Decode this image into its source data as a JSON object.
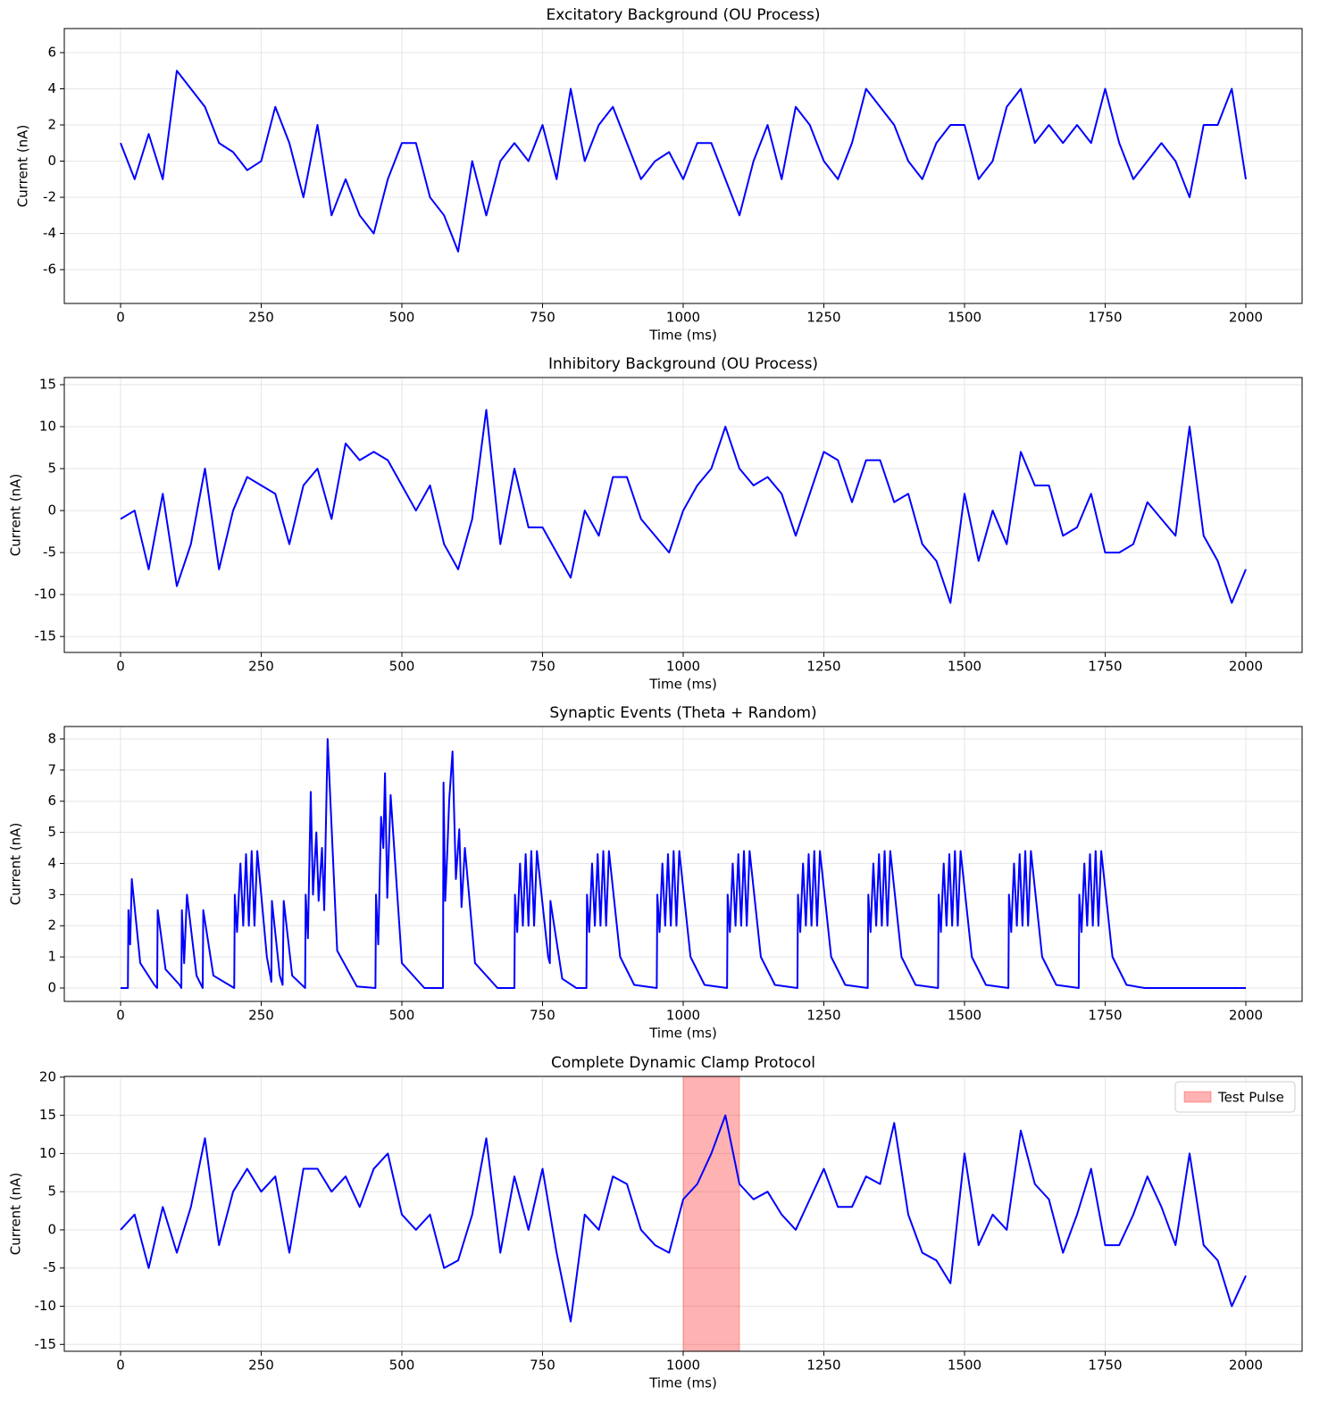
{
  "chart_data": [
    {
      "type": "line",
      "title": "Excitatory Background (OU Process)",
      "xlabel": "Time (ms)",
      "ylabel": "Current (nA)",
      "color": "#0000ff",
      "grid": true,
      "xlim": [
        -100,
        2100
      ],
      "ylim": [
        -7.87,
        7.33
      ],
      "xticks": [
        0,
        250,
        500,
        750,
        1000,
        1250,
        1500,
        1750,
        2000
      ],
      "yticks": [
        -6,
        -4,
        -2,
        0,
        2,
        4,
        6
      ],
      "x": [
        0,
        25,
        50,
        75,
        100,
        125,
        150,
        175,
        200,
        225,
        250,
        275,
        300,
        325,
        350,
        375,
        400,
        425,
        450,
        475,
        500,
        525,
        550,
        575,
        600,
        625,
        650,
        675,
        700,
        725,
        750,
        775,
        800,
        825,
        850,
        875,
        900,
        925,
        950,
        975,
        1000,
        1025,
        1050,
        1075,
        1100,
        1125,
        1150,
        1175,
        1200,
        1225,
        1250,
        1275,
        1300,
        1325,
        1350,
        1375,
        1400,
        1425,
        1450,
        1475,
        1500,
        1525,
        1550,
        1575,
        1600,
        1625,
        1650,
        1675,
        1700,
        1725,
        1750,
        1775,
        1800,
        1825,
        1850,
        1875,
        1900,
        1925,
        1950,
        1975,
        2000
      ],
      "values": [
        1,
        -1,
        1.5,
        -1,
        5,
        4,
        3,
        1,
        0.5,
        -0.5,
        0,
        3,
        1,
        -2,
        2,
        -3,
        -1,
        -3,
        -4,
        -1,
        1,
        1,
        -2,
        -3,
        -5,
        0,
        -3,
        0,
        1,
        0,
        2,
        -1,
        4,
        0,
        2,
        3,
        1,
        -1,
        0,
        0.5,
        -1,
        1,
        1,
        -1,
        -3,
        0,
        2,
        -1,
        3,
        2,
        0,
        -1,
        1,
        4,
        3,
        2,
        0,
        -1,
        1,
        2,
        2,
        -1,
        0,
        3,
        4,
        1,
        2,
        1,
        2,
        1,
        4,
        1,
        -1,
        0,
        1,
        0,
        -2,
        2,
        2,
        4,
        -1
      ]
    },
    {
      "type": "line",
      "title": "Inhibitory Background (OU Process)",
      "xlabel": "Time (ms)",
      "ylabel": "Current (nA)",
      "color": "#0000ff",
      "grid": true,
      "xlim": [
        -100,
        2100
      ],
      "ylim": [
        -16.9,
        15.85
      ],
      "xticks": [
        0,
        250,
        500,
        750,
        1000,
        1250,
        1500,
        1750,
        2000
      ],
      "yticks": [
        -15,
        -10,
        -5,
        0,
        5,
        10,
        15
      ],
      "x": [
        0,
        25,
        50,
        75,
        100,
        125,
        150,
        175,
        200,
        225,
        250,
        275,
        300,
        325,
        350,
        375,
        400,
        425,
        450,
        475,
        500,
        525,
        550,
        575,
        600,
        625,
        650,
        675,
        700,
        725,
        750,
        775,
        800,
        825,
        850,
        875,
        900,
        925,
        950,
        975,
        1000,
        1025,
        1050,
        1075,
        1100,
        1125,
        1150,
        1175,
        1200,
        1225,
        1250,
        1275,
        1300,
        1325,
        1350,
        1375,
        1400,
        1425,
        1450,
        1475,
        1500,
        1525,
        1550,
        1575,
        1600,
        1625,
        1650,
        1675,
        1700,
        1725,
        1750,
        1775,
        1800,
        1825,
        1850,
        1875,
        1900,
        1925,
        1950,
        1975,
        2000
      ],
      "values": [
        -1,
        0,
        -7,
        2,
        -9,
        -4,
        5,
        -7,
        0,
        4,
        3,
        2,
        -4,
        3,
        5,
        -1,
        8,
        6,
        7,
        6,
        3,
        0,
        3,
        -4,
        -7,
        -1,
        12,
        -4,
        5,
        -2,
        -2,
        -5,
        -8,
        0,
        -3,
        4,
        4,
        -1,
        -3,
        -5,
        0,
        3,
        5,
        10,
        5,
        3,
        4,
        2,
        -3,
        2,
        7,
        6,
        1,
        6,
        6,
        1,
        2,
        -4,
        -6,
        -11,
        2,
        -6,
        0,
        -4,
        7,
        3,
        3,
        -3,
        -2,
        2,
        -5,
        -5,
        -4,
        1,
        -1,
        -3,
        10,
        -3,
        -6,
        -11,
        -7
      ]
    },
    {
      "type": "line",
      "title": "Synaptic Events (Theta + Random)",
      "xlabel": "Time (ms)",
      "ylabel": "Current (nA)",
      "color": "#0000ff",
      "grid": true,
      "xlim": [
        -100,
        2100
      ],
      "ylim": [
        -0.43,
        8.4
      ],
      "xticks": [
        0,
        250,
        500,
        750,
        1000,
        1250,
        1500,
        1750,
        2000
      ],
      "yticks": [
        0,
        1,
        2,
        3,
        4,
        5,
        6,
        7,
        8
      ],
      "x": [
        0,
        13,
        14,
        17,
        20,
        35,
        60,
        65,
        66,
        80,
        105,
        108,
        109,
        113,
        118,
        135,
        146,
        147,
        165,
        202,
        203,
        207,
        213,
        218,
        223,
        228,
        233,
        238,
        243,
        260,
        268,
        269,
        283,
        288,
        290,
        305,
        328,
        329,
        333,
        338,
        342,
        348,
        352,
        358,
        362,
        368,
        385,
        420,
        453,
        454,
        458,
        463,
        467,
        470,
        474,
        480,
        500,
        540,
        573,
        574,
        577,
        581,
        584,
        590,
        596,
        602,
        606,
        612,
        630,
        670,
        700,
        701,
        705,
        710,
        715,
        720,
        725,
        730,
        735,
        740,
        760,
        763,
        764,
        785,
        810,
        828,
        829,
        833,
        838,
        843,
        848,
        853,
        858,
        863,
        868,
        888,
        913,
        953,
        954,
        958,
        963,
        968,
        973,
        978,
        983,
        988,
        993,
        1013,
        1038,
        1078,
        1079,
        1083,
        1088,
        1093,
        1098,
        1103,
        1108,
        1113,
        1118,
        1138,
        1163,
        1203,
        1204,
        1208,
        1213,
        1218,
        1223,
        1228,
        1233,
        1238,
        1243,
        1263,
        1288,
        1328,
        1329,
        1333,
        1338,
        1343,
        1348,
        1353,
        1358,
        1363,
        1368,
        1388,
        1413,
        1453,
        1454,
        1458,
        1463,
        1468,
        1473,
        1478,
        1483,
        1488,
        1493,
        1513,
        1538,
        1578,
        1579,
        1583,
        1588,
        1593,
        1598,
        1603,
        1608,
        1613,
        1618,
        1638,
        1663,
        1703,
        1704,
        1708,
        1713,
        1718,
        1723,
        1728,
        1733,
        1738,
        1743,
        1763,
        1788,
        1820,
        2000
      ],
      "values": [
        0,
        0,
        2.5,
        1.4,
        3.5,
        0.8,
        0.1,
        0,
        2.5,
        0.6,
        0.1,
        0,
        2.5,
        0.8,
        3,
        0.4,
        0,
        2.5,
        0.4,
        0,
        3,
        1.8,
        4,
        2,
        4.3,
        2,
        4.4,
        2,
        4.4,
        1,
        0.2,
        2.8,
        0.4,
        0.1,
        2.8,
        0.4,
        0,
        3,
        1.6,
        6.3,
        3,
        5,
        2.8,
        4.5,
        2.5,
        8,
        1.2,
        0.05,
        0,
        3,
        1.4,
        5.5,
        4.5,
        6.9,
        2.9,
        6.2,
        0.8,
        0,
        0,
        6.6,
        2.8,
        4.5,
        6,
        7.6,
        3.5,
        5.1,
        2.6,
        4.5,
        0.8,
        0,
        0,
        3,
        1.8,
        4,
        2,
        4.3,
        2,
        4.4,
        2,
        4.4,
        1,
        0.8,
        2.8,
        0.3,
        0,
        0,
        3,
        1.8,
        4,
        2,
        4.3,
        2,
        4.4,
        2,
        4.4,
        1,
        0.1,
        0,
        3,
        1.8,
        4,
        2,
        4.3,
        2,
        4.4,
        2,
        4.4,
        1,
        0.1,
        0,
        3,
        1.8,
        4,
        2,
        4.3,
        2,
        4.4,
        2,
        4.4,
        1,
        0.1,
        0,
        3,
        1.8,
        4,
        2,
        4.3,
        2,
        4.4,
        2,
        4.4,
        1,
        0.1,
        0,
        3,
        1.8,
        4,
        2,
        4.3,
        2,
        4.4,
        2,
        4.4,
        1,
        0.1,
        0,
        3,
        1.8,
        4,
        2,
        4.3,
        2,
        4.4,
        2,
        4.4,
        1,
        0.1,
        0,
        3,
        1.8,
        4,
        2,
        4.3,
        2,
        4.4,
        2,
        4.4,
        1,
        0.1,
        0,
        3,
        1.8,
        4,
        2,
        4.3,
        2,
        4.4,
        2,
        4.4,
        1,
        0.1,
        0,
        0
      ]
    },
    {
      "type": "line",
      "title": "Complete Dynamic Clamp Protocol",
      "xlabel": "Time (ms)",
      "ylabel": "Current (nA)",
      "color": "#0000ff",
      "grid": true,
      "xlim": [
        -100,
        2100
      ],
      "ylim": [
        -15.9,
        20.1
      ],
      "xticks": [
        0,
        250,
        500,
        750,
        1000,
        1250,
        1500,
        1750,
        2000
      ],
      "yticks": [
        -15,
        -10,
        -5,
        0,
        5,
        10,
        15,
        20
      ],
      "x": [
        0,
        25,
        50,
        75,
        100,
        125,
        150,
        175,
        200,
        225,
        250,
        275,
        300,
        325,
        350,
        375,
        400,
        425,
        450,
        475,
        500,
        525,
        550,
        575,
        600,
        625,
        650,
        675,
        700,
        725,
        750,
        775,
        800,
        825,
        850,
        875,
        900,
        925,
        950,
        975,
        1000,
        1025,
        1050,
        1075,
        1100,
        1125,
        1150,
        1175,
        1200,
        1225,
        1250,
        1275,
        1300,
        1325,
        1350,
        1375,
        1400,
        1425,
        1450,
        1475,
        1500,
        1525,
        1550,
        1575,
        1600,
        1625,
        1650,
        1675,
        1700,
        1725,
        1750,
        1775,
        1800,
        1825,
        1850,
        1875,
        1900,
        1925,
        1950,
        1975,
        2000
      ],
      "values": [
        0,
        2,
        -5,
        3,
        -3,
        3,
        12,
        -2,
        5,
        8,
        5,
        7,
        -3,
        8,
        8,
        5,
        7,
        3,
        8,
        10,
        2,
        0,
        2,
        -5,
        -4,
        2,
        12,
        -3,
        7,
        0,
        8,
        -3,
        -12,
        2,
        0,
        7,
        6,
        0,
        -2,
        -3,
        4,
        6,
        10,
        15,
        6,
        4,
        5,
        2,
        0,
        4,
        8,
        3,
        3,
        7,
        6,
        14,
        2,
        -3,
        -4,
        -7,
        10,
        -2,
        2,
        0,
        13,
        6,
        4,
        -3,
        2,
        8,
        -2,
        -2,
        2,
        7,
        3,
        -2,
        10,
        -2,
        -4,
        -10,
        -6
      ],
      "span": {
        "label": "Test Pulse",
        "x": [
          1000,
          1100
        ],
        "color": "#ff0000"
      },
      "legend": "upper right"
    }
  ]
}
